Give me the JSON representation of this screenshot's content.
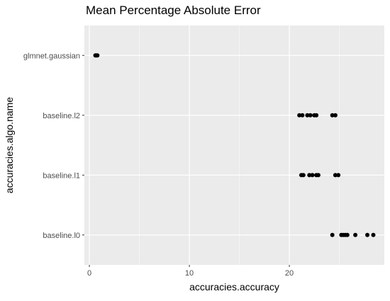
{
  "chart_data": {
    "type": "scatter",
    "title": "Mean Percentage Absolute Error",
    "xlabel": "accuracies.accuracy",
    "ylabel": "accuracies.algo.name",
    "xlim": [
      -0.5,
      29.5
    ],
    "x_ticks": [
      0,
      10,
      20
    ],
    "x_minor_ticks": [
      5,
      15,
      25
    ],
    "categories": [
      "baseline.l0",
      "baseline.l1",
      "baseline.l2",
      "glmnet.gaussian"
    ],
    "grid": true,
    "legend": "none",
    "colors": {
      "panel": "#ebebeb",
      "grid_major": "#ffffff",
      "point": "#000000"
    },
    "points": [
      {
        "category": "glmnet.gaussian",
        "x": 0.6
      },
      {
        "category": "glmnet.gaussian",
        "x": 0.7
      },
      {
        "category": "glmnet.gaussian",
        "x": 0.8
      },
      {
        "category": "baseline.l2",
        "x": 21.0
      },
      {
        "category": "baseline.l2",
        "x": 21.3
      },
      {
        "category": "baseline.l2",
        "x": 21.8
      },
      {
        "category": "baseline.l2",
        "x": 22.1
      },
      {
        "category": "baseline.l2",
        "x": 22.5
      },
      {
        "category": "baseline.l2",
        "x": 22.7
      },
      {
        "category": "baseline.l2",
        "x": 24.3
      },
      {
        "category": "baseline.l2",
        "x": 24.6
      },
      {
        "category": "baseline.l1",
        "x": 21.2
      },
      {
        "category": "baseline.l1",
        "x": 21.4
      },
      {
        "category": "baseline.l1",
        "x": 22.0
      },
      {
        "category": "baseline.l1",
        "x": 22.3
      },
      {
        "category": "baseline.l1",
        "x": 22.7
      },
      {
        "category": "baseline.l1",
        "x": 22.9
      },
      {
        "category": "baseline.l1",
        "x": 24.6
      },
      {
        "category": "baseline.l1",
        "x": 24.9
      },
      {
        "category": "baseline.l0",
        "x": 24.3
      },
      {
        "category": "baseline.l0",
        "x": 25.2
      },
      {
        "category": "baseline.l0",
        "x": 25.4
      },
      {
        "category": "baseline.l0",
        "x": 25.6
      },
      {
        "category": "baseline.l0",
        "x": 25.8
      },
      {
        "category": "baseline.l0",
        "x": 26.6
      },
      {
        "category": "baseline.l0",
        "x": 27.8
      },
      {
        "category": "baseline.l0",
        "x": 28.4
      }
    ]
  }
}
